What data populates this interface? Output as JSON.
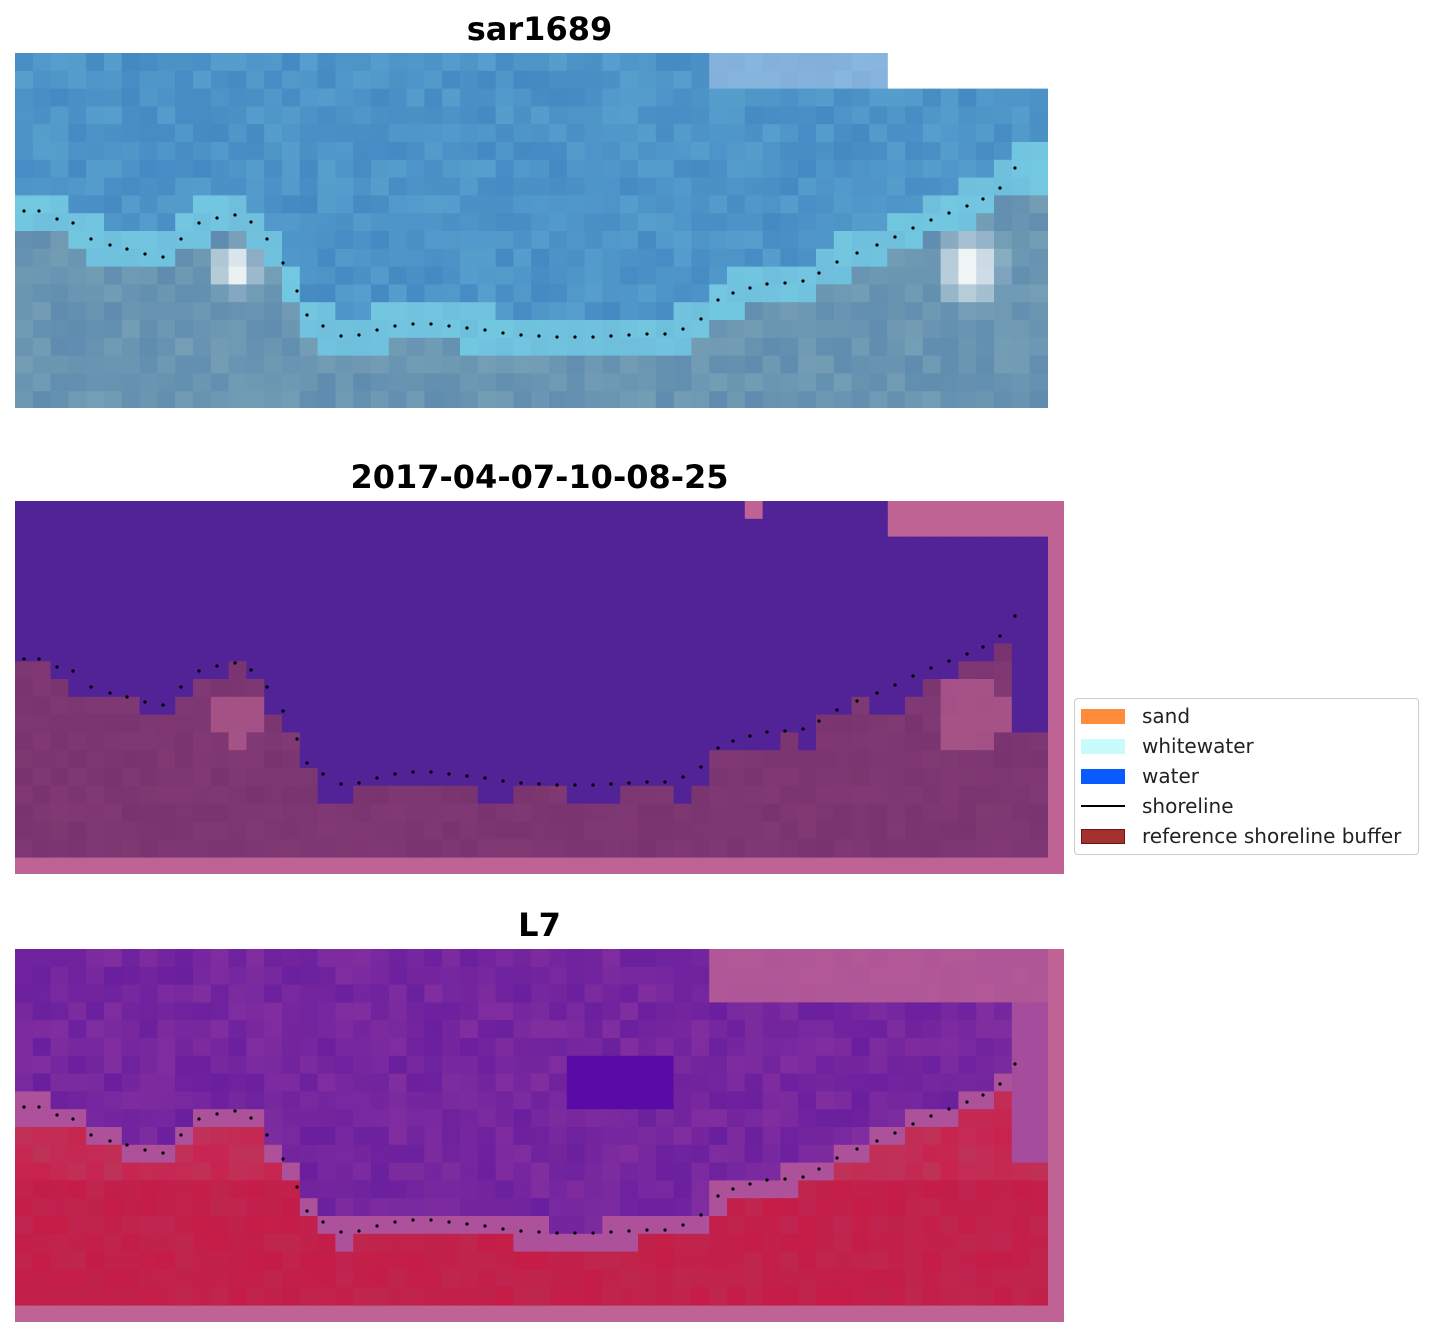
{
  "panels": [
    {
      "title": "sar1689",
      "kind": "rgb"
    },
    {
      "title": "2017-04-07-10-08-25",
      "kind": "classified"
    },
    {
      "title": "L7",
      "kind": "mndwi"
    }
  ],
  "legend": {
    "items": [
      {
        "label": "sand",
        "type": "patch",
        "color": "#ff8c3c"
      },
      {
        "label": "whitewater",
        "type": "patch",
        "color": "#c8fcfc"
      },
      {
        "label": "water",
        "type": "patch",
        "color": "#0a5bff"
      },
      {
        "label": "shoreline",
        "type": "line",
        "color": "#000000"
      },
      {
        "label": "reference shoreline buffer",
        "type": "patch",
        "color": "#a3312e"
      }
    ]
  },
  "colors": {
    "rgb_water": "#3f86bd",
    "rgb_whitewater": "#e8f4f6",
    "classified_water": "#512396",
    "classified_land": "#79346f",
    "classified_border": "#bf6395",
    "mndwi_water": "#6a1f9e",
    "mndwi_land": "#c8234f",
    "shoreline_dots": "#000000"
  }
}
